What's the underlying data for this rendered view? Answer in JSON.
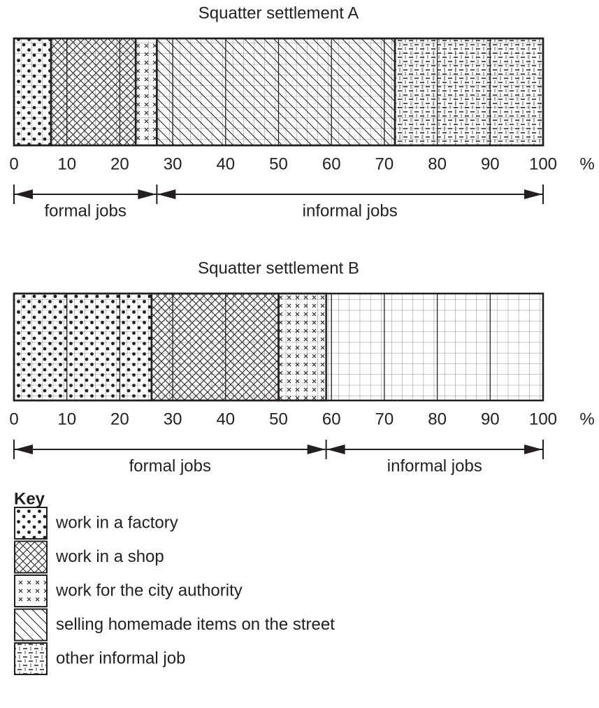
{
  "chart_data": [
    {
      "type": "stacked-bar",
      "title": "Squatter settlement A",
      "values": [
        7,
        16,
        4,
        45,
        28
      ],
      "xlim": [
        0,
        100
      ],
      "xticks": [
        0,
        10,
        20,
        30,
        40,
        50,
        60,
        70,
        80,
        90,
        100
      ],
      "x_unit": "%",
      "brackets": {
        "labels": [
          "formal jobs",
          "informal jobs"
        ],
        "edges": [
          0,
          27,
          100
        ]
      }
    },
    {
      "type": "stacked-bar",
      "title": "Squatter settlement B",
      "values": [
        26,
        24,
        9
      ],
      "xlim": [
        0,
        100
      ],
      "xticks": [
        0,
        10,
        20,
        30,
        40,
        50,
        60,
        70,
        80,
        90,
        100
      ],
      "x_unit": "%",
      "brackets": {
        "labels": [
          "formal jobs",
          "informal jobs"
        ],
        "edges": [
          0,
          59,
          100
        ]
      }
    }
  ],
  "key": {
    "title": "Key",
    "items": [
      "work in a factory",
      "work in a shop",
      "work for the city authority",
      "selling homemade items on the street",
      "other informal job"
    ],
    "patterns": [
      "dots",
      "crosshatch",
      "crosses",
      "diagonal",
      "dashes"
    ]
  }
}
